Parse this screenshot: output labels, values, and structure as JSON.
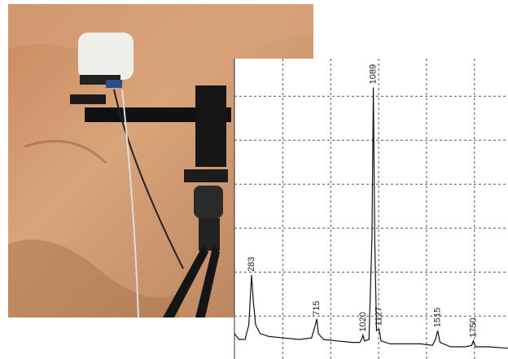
{
  "chart_data": {
    "type": "line",
    "xlim": [
      170,
      1980
    ],
    "ylim": [
      0,
      100
    ],
    "xticks": [
      490,
      807,
      1124,
      1441,
      1758
    ],
    "yticks": [
      13,
      28,
      43,
      58,
      73,
      88
    ],
    "grid": true,
    "color": "#111111",
    "x": [
      170,
      200,
      240,
      265,
      283,
      295,
      310,
      340,
      400,
      500,
      600,
      680,
      700,
      715,
      725,
      760,
      850,
      950,
      1000,
      1015,
      1020,
      1030,
      1060,
      1080,
      1089,
      1098,
      1110,
      1127,
      1140,
      1200,
      1300,
      1400,
      1480,
      1500,
      1515,
      1530,
      1600,
      1700,
      1740,
      1750,
      1765,
      1850,
      1980
    ],
    "values": [
      7,
      5,
      5,
      10,
      27,
      18,
      10,
      7,
      6,
      5.5,
      5,
      5.5,
      9,
      12,
      7,
      5,
      4.5,
      4,
      4,
      5.5,
      6.5,
      4.5,
      5,
      40,
      91,
      40,
      8,
      8.5,
      4.5,
      3.5,
      3.5,
      3.5,
      3,
      5,
      8,
      4,
      2.5,
      2.5,
      3,
      4.5,
      2.5,
      2.5,
      2
    ],
    "peaks": [
      283,
      715,
      1020,
      1089,
      1127,
      1515,
      1750
    ]
  }
}
